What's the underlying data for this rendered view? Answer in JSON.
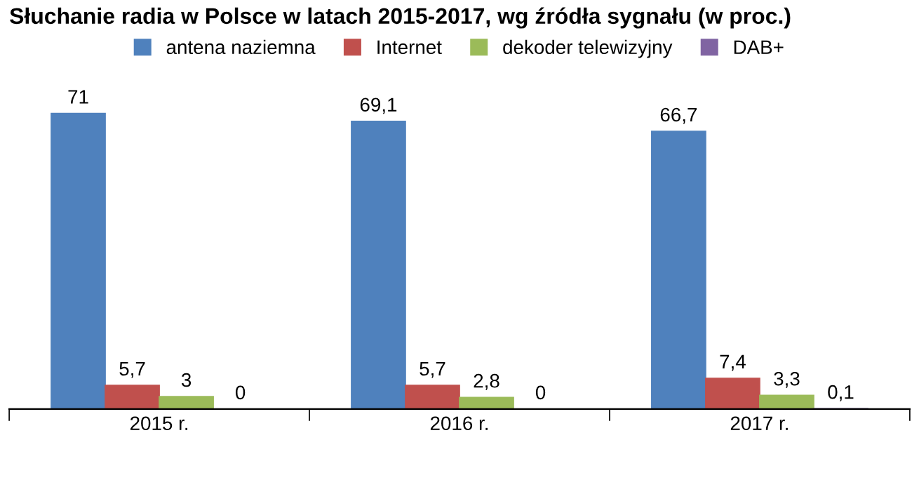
{
  "chart_data": {
    "type": "bar",
    "title": "Słuchanie radia w Polsce w latach 2015-2017, wg źródła sygnału (w proc.)",
    "categories": [
      "2015 r.",
      "2016 r.",
      "2017 r."
    ],
    "series": [
      {
        "name": "antena naziemna",
        "color": "#4f81bd",
        "values": [
          71,
          69.1,
          66.7
        ],
        "value_labels": [
          "71",
          "69,1",
          "66,7"
        ]
      },
      {
        "name": "Internet",
        "color": "#c0504d",
        "values": [
          5.7,
          5.7,
          7.4
        ],
        "value_labels": [
          "5,7",
          "5,7",
          "7,4"
        ]
      },
      {
        "name": "dekoder telewizyjny",
        "color": "#9bbb59",
        "values": [
          3,
          2.8,
          3.3
        ],
        "value_labels": [
          "3",
          "2,8",
          "3,3"
        ]
      },
      {
        "name": "DAB+",
        "color": "#8064a2",
        "values": [
          0,
          0,
          0.1
        ],
        "value_labels": [
          "0",
          "0",
          "0,1"
        ]
      }
    ],
    "legend": "top",
    "grid": false
  }
}
